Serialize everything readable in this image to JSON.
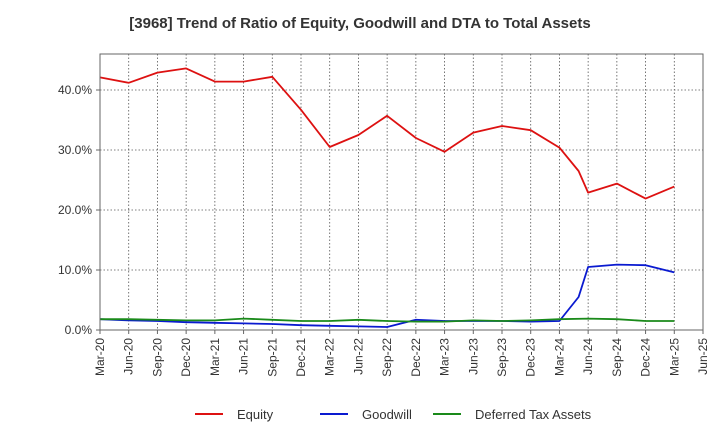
{
  "chart_data": {
    "type": "line",
    "title": "[3968]  Trend of Ratio of Equity, Goodwill and DTA to Total Assets",
    "xlabel": "",
    "ylabel": "",
    "x_ticks": [
      "Mar-20",
      "Jun-20",
      "Sep-20",
      "Dec-20",
      "Mar-21",
      "Jun-21",
      "Sep-21",
      "Dec-21",
      "Mar-22",
      "Jun-22",
      "Sep-22",
      "Dec-22",
      "Mar-23",
      "Jun-23",
      "Sep-23",
      "Dec-23",
      "Mar-24",
      "Jun-24",
      "Sep-24",
      "Dec-24",
      "Mar-25",
      "Jun-25"
    ],
    "y_ticks": [
      "0.0%",
      "10.0%",
      "20.0%",
      "30.0%",
      "40.0%"
    ],
    "ylim": [
      0,
      46
    ],
    "grid": true,
    "legend_position": "bottom",
    "series": [
      {
        "name": "Equity",
        "color": "#dd1111",
        "points": [
          [
            "Mar-20",
            42.1
          ],
          [
            "Jun-20",
            41.2
          ],
          [
            "Sep-20",
            42.9
          ],
          [
            "Dec-20",
            43.6
          ],
          [
            "Mar-21",
            41.4
          ],
          [
            "Jun-21",
            41.4
          ],
          [
            "Sep-21",
            42.2
          ],
          [
            "Dec-21",
            36.7
          ],
          [
            "Mar-22",
            30.5
          ],
          [
            "Jun-22",
            32.5
          ],
          [
            "Sep-22",
            35.7
          ],
          [
            "Dec-22",
            32.0
          ],
          [
            "Mar-23",
            29.7
          ],
          [
            "Jun-23",
            32.9
          ],
          [
            "Sep-23",
            34.0
          ],
          [
            "Dec-23",
            33.3
          ],
          [
            "Mar-24",
            30.4
          ],
          [
            "May-24",
            26.5
          ],
          [
            "Jun-24",
            22.9
          ],
          [
            "Sep-24",
            24.4
          ],
          [
            "Dec-24",
            21.9
          ],
          [
            "Mar-25",
            23.9
          ]
        ]
      },
      {
        "name": "Goodwill",
        "color": "#0a1ad0",
        "points": [
          [
            "Mar-20",
            1.8
          ],
          [
            "Jun-20",
            1.6
          ],
          [
            "Sep-20",
            1.5
          ],
          [
            "Dec-20",
            1.3
          ],
          [
            "Mar-21",
            1.2
          ],
          [
            "Jun-21",
            1.1
          ],
          [
            "Sep-21",
            1.0
          ],
          [
            "Dec-21",
            0.8
          ],
          [
            "Mar-22",
            0.7
          ],
          [
            "Jun-22",
            0.6
          ],
          [
            "Sep-22",
            0.5
          ],
          [
            "Dec-22",
            1.7
          ],
          [
            "Mar-23",
            1.5
          ],
          [
            "Jun-23",
            1.5
          ],
          [
            "Sep-23",
            1.5
          ],
          [
            "Dec-23",
            1.4
          ],
          [
            "Mar-24",
            1.5
          ],
          [
            "May-24",
            5.5
          ],
          [
            "Jun-24",
            10.5
          ],
          [
            "Sep-24",
            10.9
          ],
          [
            "Dec-24",
            10.8
          ],
          [
            "Mar-25",
            9.6
          ]
        ]
      },
      {
        "name": "Deferred Tax Assets",
        "color": "#1a8a1a",
        "points": [
          [
            "Mar-20",
            1.8
          ],
          [
            "Jun-20",
            1.8
          ],
          [
            "Sep-20",
            1.7
          ],
          [
            "Dec-20",
            1.6
          ],
          [
            "Mar-21",
            1.6
          ],
          [
            "Jun-21",
            1.9
          ],
          [
            "Sep-21",
            1.7
          ],
          [
            "Dec-21",
            1.5
          ],
          [
            "Mar-22",
            1.5
          ],
          [
            "Jun-22",
            1.7
          ],
          [
            "Sep-22",
            1.5
          ],
          [
            "Dec-22",
            1.4
          ],
          [
            "Mar-23",
            1.4
          ],
          [
            "Jun-23",
            1.6
          ],
          [
            "Sep-23",
            1.5
          ],
          [
            "Dec-23",
            1.6
          ],
          [
            "Mar-24",
            1.8
          ],
          [
            "Jun-24",
            1.9
          ],
          [
            "Sep-24",
            1.8
          ],
          [
            "Dec-24",
            1.5
          ],
          [
            "Mar-25",
            1.5
          ]
        ]
      }
    ]
  }
}
